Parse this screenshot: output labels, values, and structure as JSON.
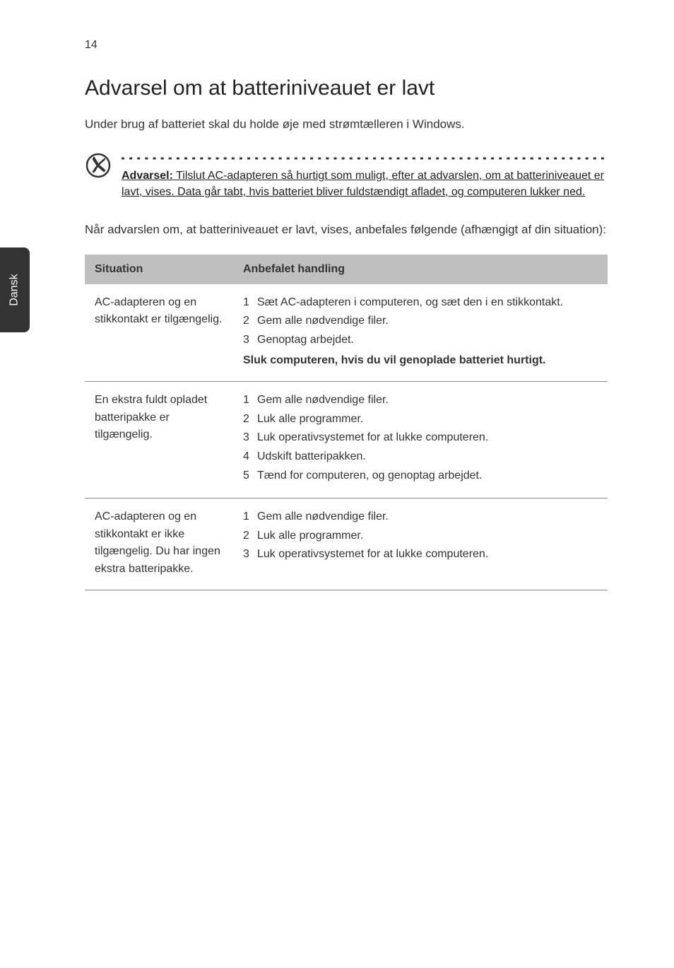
{
  "page_number": "14",
  "side_tab": "Dansk",
  "heading": "Advarsel om at batteriniveauet er lavt",
  "intro": "Under brug af batteriet skal du holde øje med strømtælleren i Windows.",
  "warning": {
    "label": "Advarsel:",
    "text": " Tilslut AC-adapteren så hurtigt som muligt, efter at advarslen, om at batteriniveauet er lavt, vises. Data går tabt, hvis batteriet bliver fuldstændigt afladet, og computeren lukker ned."
  },
  "post_warning": "Når advarslen om, at batteriniveauet er lavt, vises, anbefales følgende (afhængigt af din situation):",
  "table": {
    "headers": [
      "Situation",
      "Anbefalet handling"
    ],
    "rows": [
      {
        "situation": "AC-adapteren og en stikkontakt er tilgængelig.",
        "steps": [
          "Sæt AC-adapteren i computeren, og sæt den i en stikkontakt.",
          "Gem alle nødvendige filer.",
          "Genoptag arbejdet."
        ],
        "note": "Sluk computeren, hvis du vil genoplade batteriet hurtigt."
      },
      {
        "situation": "En ekstra fuldt opladet batteripakke er tilgængelig.",
        "steps": [
          "Gem alle nødvendige filer.",
          "Luk alle programmer.",
          "Luk operativsystemet for at lukke computeren.",
          "Udskift batteripakken.",
          "Tænd for computeren, og genoptag arbejdet."
        ],
        "note": ""
      },
      {
        "situation": "AC-adapteren og en stikkontakt er ikke tilgængelig. Du har ingen ekstra batteripakke.",
        "steps": [
          "Gem alle nødvendige filer.",
          "Luk alle programmer.",
          "Luk operativsystemet for at lukke computeren."
        ],
        "note": ""
      }
    ]
  },
  "colors": {
    "header_bg": "#bfbfbf",
    "side_bg": "#333333",
    "side_fg": "#ffffff",
    "text": "#333333",
    "border": "#888888"
  }
}
